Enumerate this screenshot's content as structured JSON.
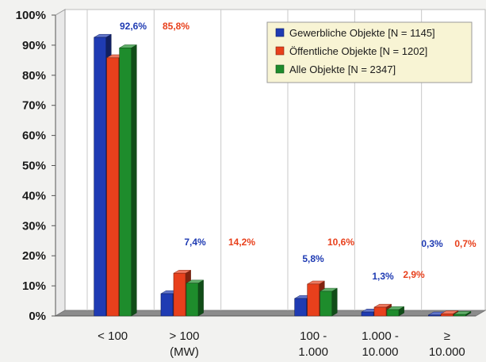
{
  "chart_data": {
    "type": "bar",
    "title": "",
    "xlabel": "",
    "ylabel": "",
    "ylim": [
      0,
      100
    ],
    "y_ticks": [
      "0%",
      "10%",
      "20%",
      "30%",
      "40%",
      "50%",
      "60%",
      "70%",
      "80%",
      "90%",
      "100%"
    ],
    "grid": "vertical",
    "legend_position": "top-right",
    "categories": [
      {
        "lines": [
          "< 100"
        ]
      },
      {
        "lines": [
          "> 100",
          "(MW)"
        ]
      },
      {
        "lines": [
          ""
        ]
      },
      {
        "lines": [
          "100 -",
          "1.000"
        ]
      },
      {
        "lines": [
          "1.000 -",
          "10.000"
        ]
      },
      {
        "lines": [
          "≥",
          "10.000"
        ]
      }
    ],
    "series": [
      {
        "name": "Gewerbliche Objekte [N = 1145]",
        "color": "#1f3bb3",
        "values": [
          92.6,
          7.4,
          null,
          5.8,
          1.3,
          0.3
        ],
        "labels": [
          "92,6%",
          "7,4%",
          "",
          "5,8%",
          "1,3%",
          "0,3%"
        ]
      },
      {
        "name": "Öffentliche Objekte [N = 1202]",
        "color": "#e8401c",
        "values": [
          85.8,
          14.2,
          null,
          10.6,
          2.9,
          0.7
        ],
        "labels": [
          "85,8%",
          "14,2%",
          "",
          "10,6%",
          "2,9%",
          "0,7%"
        ]
      },
      {
        "name": "Alle Objekte [N = 2347]",
        "color": "#1e8c2c",
        "values": [
          89.1,
          10.9,
          null,
          8.2,
          2.1,
          0.5
        ],
        "labels": [
          "",
          "",
          "",
          "",
          "",
          ""
        ]
      }
    ]
  }
}
